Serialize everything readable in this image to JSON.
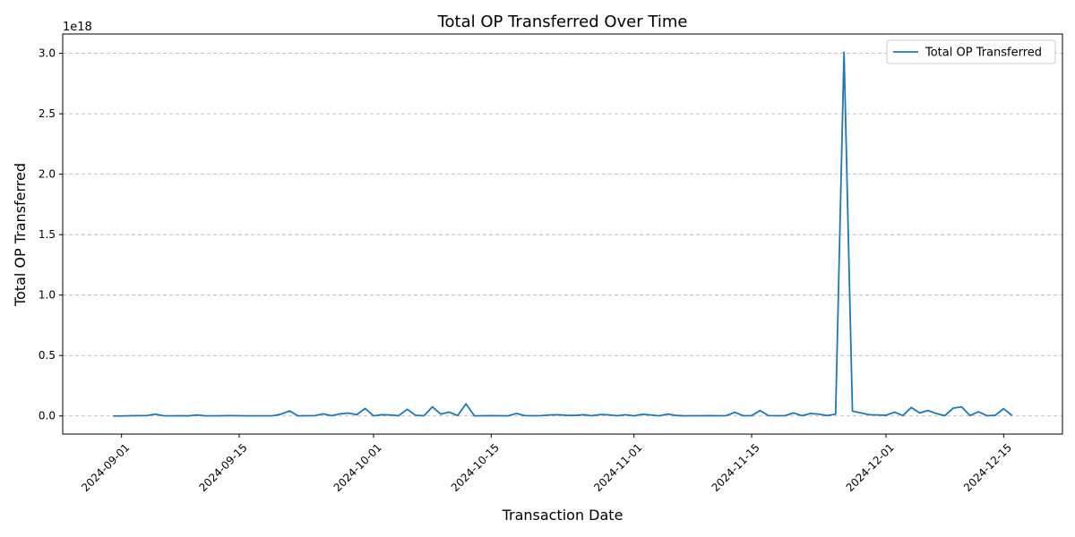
{
  "chart_data": {
    "type": "line",
    "title": "Total OP Transferred Over Time",
    "x_label": "Transaction Date",
    "y_label": "Total OP Transferred",
    "y_offset_label": "1e18",
    "x": [
      "2024-08-31",
      "2024-09-01",
      "2024-09-02",
      "2024-09-03",
      "2024-09-04",
      "2024-09-05",
      "2024-09-06",
      "2024-09-07",
      "2024-09-08",
      "2024-09-09",
      "2024-09-10",
      "2024-09-11",
      "2024-09-12",
      "2024-09-13",
      "2024-09-14",
      "2024-09-15",
      "2024-09-16",
      "2024-09-17",
      "2024-09-18",
      "2024-09-19",
      "2024-09-20",
      "2024-09-21",
      "2024-09-22",
      "2024-09-23",
      "2024-09-24",
      "2024-09-25",
      "2024-09-26",
      "2024-09-27",
      "2024-09-28",
      "2024-09-29",
      "2024-09-30",
      "2024-10-01",
      "2024-10-02",
      "2024-10-03",
      "2024-10-04",
      "2024-10-05",
      "2024-10-06",
      "2024-10-07",
      "2024-10-08",
      "2024-10-09",
      "2024-10-10",
      "2024-10-11",
      "2024-10-12",
      "2024-10-13",
      "2024-10-14",
      "2024-10-15",
      "2024-10-16",
      "2024-10-17",
      "2024-10-18",
      "2024-10-19",
      "2024-10-20",
      "2024-10-21",
      "2024-10-22",
      "2024-10-23",
      "2024-10-24",
      "2024-10-25",
      "2024-10-26",
      "2024-10-27",
      "2024-10-28",
      "2024-10-29",
      "2024-10-30",
      "2024-10-31",
      "2024-11-01",
      "2024-11-02",
      "2024-11-03",
      "2024-11-04",
      "2024-11-05",
      "2024-11-06",
      "2024-11-07",
      "2024-11-08",
      "2024-11-09",
      "2024-11-10",
      "2024-11-11",
      "2024-11-12",
      "2024-11-13",
      "2024-11-14",
      "2024-11-15",
      "2024-11-16",
      "2024-11-17",
      "2024-11-18",
      "2024-11-19",
      "2024-11-20",
      "2024-11-21",
      "2024-11-22",
      "2024-11-23",
      "2024-11-24",
      "2024-11-25",
      "2024-11-26",
      "2024-11-27",
      "2024-11-28",
      "2024-11-29",
      "2024-11-30",
      "2024-12-01",
      "2024-12-02",
      "2024-12-03",
      "2024-12-04",
      "2024-12-05",
      "2024-12-06",
      "2024-12-07",
      "2024-12-08",
      "2024-12-09",
      "2024-12-10",
      "2024-12-11",
      "2024-12-12",
      "2024-12-13",
      "2024-12-14",
      "2024-12-15",
      "2024-12-16"
    ],
    "series": [
      {
        "name": "Total OP Transferred",
        "color": "#1f77b4",
        "values": [
          0,
          0,
          0.002,
          0.003,
          0.003,
          0.015,
          0.002,
          0.001,
          0.002,
          0.001,
          0.008,
          0.001,
          0.001,
          0.002,
          0.003,
          0.002,
          0.001,
          0.001,
          0.001,
          0.002,
          0.015,
          0.042,
          0.001,
          0.002,
          0.003,
          0.017,
          0.003,
          0.017,
          0.024,
          0.01,
          0.062,
          0.001,
          0.01,
          0.008,
          0.002,
          0.055,
          0.005,
          0.002,
          0.075,
          0.015,
          0.032,
          0.003,
          0.1,
          0.001,
          0.002,
          0.003,
          0.002,
          0.001,
          0.02,
          0.003,
          0.002,
          0.003,
          0.008,
          0.01,
          0.005,
          0.004,
          0.01,
          0.002,
          0.012,
          0.009,
          0.002,
          0.01,
          0.001,
          0.014,
          0.008,
          0.001,
          0.016,
          0.004,
          0.001,
          0.002,
          0.002,
          0.003,
          0.002,
          0.003,
          0.03,
          0.002,
          0.003,
          0.045,
          0.003,
          0.002,
          0.003,
          0.025,
          0.002,
          0.02,
          0.015,
          0.003,
          0.015,
          3.01,
          0.04,
          0.025,
          0.01,
          0.008,
          0.005,
          0.032,
          0.003,
          0.07,
          0.025,
          0.045,
          0.02,
          0.002,
          0.065,
          0.075,
          0.003,
          0.035,
          0.002,
          0.005,
          0.06,
          0.003
        ]
      }
    ],
    "xlim": [
      "2024-08-25",
      "2024-12-22"
    ],
    "xticks": [
      "2024-09-01",
      "2024-09-15",
      "2024-10-01",
      "2024-10-15",
      "2024-11-01",
      "2024-11-15",
      "2024-12-01",
      "2024-12-15"
    ],
    "ylim": [
      -0.15,
      3.16
    ],
    "yticks": [
      {
        "value": 0,
        "label": "0.0"
      },
      0.5,
      {
        "value": 1,
        "label": "1.0"
      },
      1.5,
      {
        "value": 2,
        "label": "2.0"
      },
      2.5,
      {
        "value": 3,
        "label": "3.0"
      }
    ],
    "grid": true,
    "legend": "upper right"
  }
}
